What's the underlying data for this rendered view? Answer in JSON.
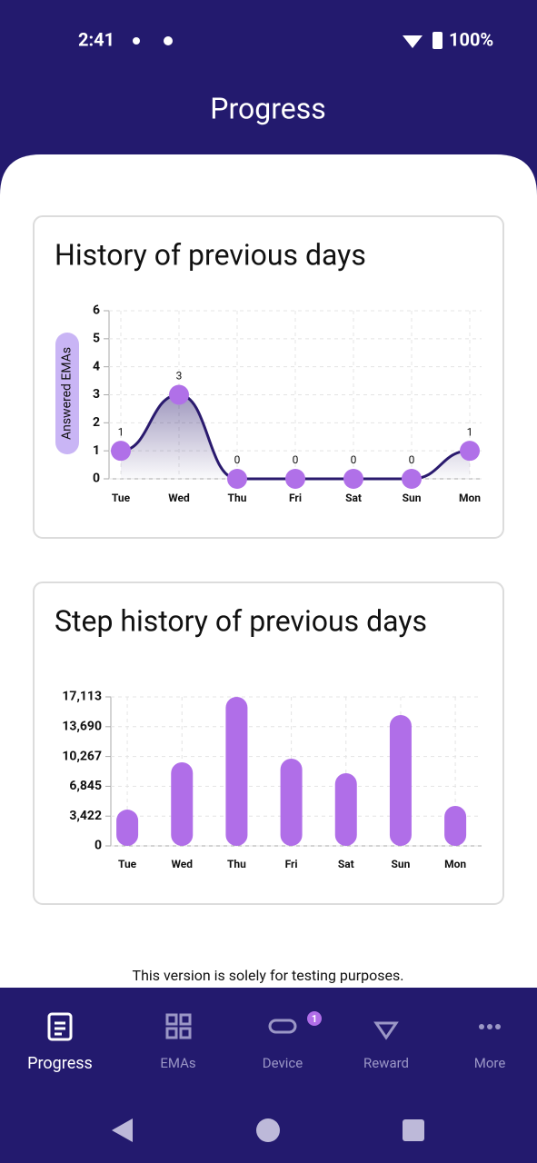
{
  "status_bar": {
    "time": "2:41",
    "battery": "100%"
  },
  "header": {
    "title": "Progress"
  },
  "chart_data": [
    {
      "type": "line",
      "title": "History of previous days",
      "y_label": "Answered EMAs",
      "categories": [
        "Tue",
        "Wed",
        "Thu",
        "Fri",
        "Sat",
        "Sun",
        "Mon"
      ],
      "values": [
        1,
        3,
        0,
        0,
        0,
        0,
        1
      ],
      "ylim": [
        0,
        6
      ],
      "yticks": [
        0,
        1,
        2,
        3,
        4,
        5,
        6
      ],
      "color": "#2a1a6e",
      "marker_color": "#b070e8",
      "grid": true
    },
    {
      "type": "bar",
      "title": "Step history of previous days",
      "categories": [
        "Tue",
        "Wed",
        "Thu",
        "Fri",
        "Sat",
        "Sun",
        "Mon"
      ],
      "values": [
        4170,
        9600,
        17113,
        10020,
        8350,
        15030,
        4590
      ],
      "ylim": [
        0,
        17113
      ],
      "yticks": [
        0,
        {
          "value": 3422,
          "label": "3,422"
        },
        {
          "value": 6845,
          "label": "6,845"
        },
        {
          "value": 10267,
          "label": "10,267"
        },
        {
          "value": 13690,
          "label": "13,690"
        },
        {
          "value": 17113,
          "label": "17,113"
        }
      ],
      "color": "#b06ee8",
      "grid": true
    }
  ],
  "notice": "This version is solely for testing purposes.",
  "nav": {
    "items": [
      "Progress",
      "EMAs",
      "Device",
      "Reward",
      "More"
    ],
    "badge": 1
  }
}
